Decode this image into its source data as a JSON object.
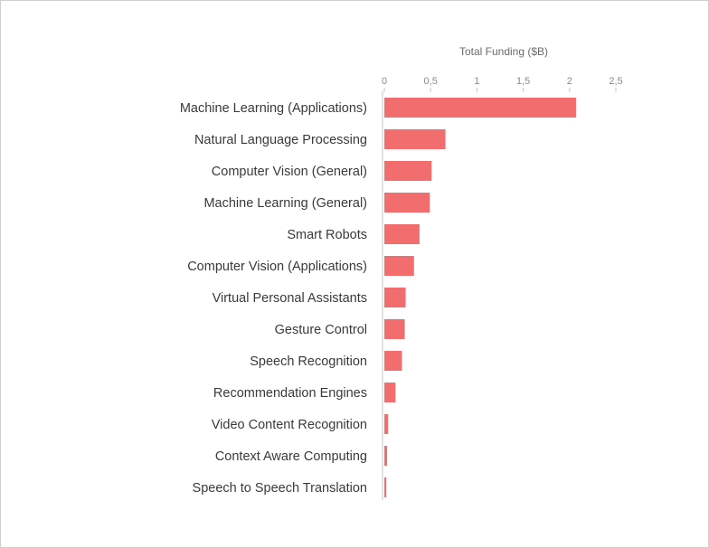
{
  "chart_data": {
    "type": "bar",
    "orientation": "horizontal",
    "xlabel": "Total Funding ($B)",
    "xlim": [
      0,
      2.5
    ],
    "ticks": [
      0,
      0.5,
      1,
      1.5,
      2,
      2.5
    ],
    "tick_labels": [
      "0",
      "0,5",
      "1",
      "1,5",
      "2",
      "2,5"
    ],
    "grid": false,
    "bar_color": "#f26d6d",
    "categories": [
      "Machine Learning (Applications)",
      "Natural Language Processing",
      "Computer Vision (General)",
      "Machine Learning (General)",
      "Smart Robots",
      "Computer Vision (Applications)",
      "Virtual Personal Assistants",
      "Gesture Control",
      "Speech Recognition",
      "Recommendation Engines",
      "Video Content Recognition",
      "Context Aware Computing",
      "Speech to Speech Translation"
    ],
    "values": [
      2.07,
      0.66,
      0.51,
      0.49,
      0.38,
      0.32,
      0.23,
      0.22,
      0.19,
      0.12,
      0.04,
      0.03,
      0.02
    ]
  }
}
